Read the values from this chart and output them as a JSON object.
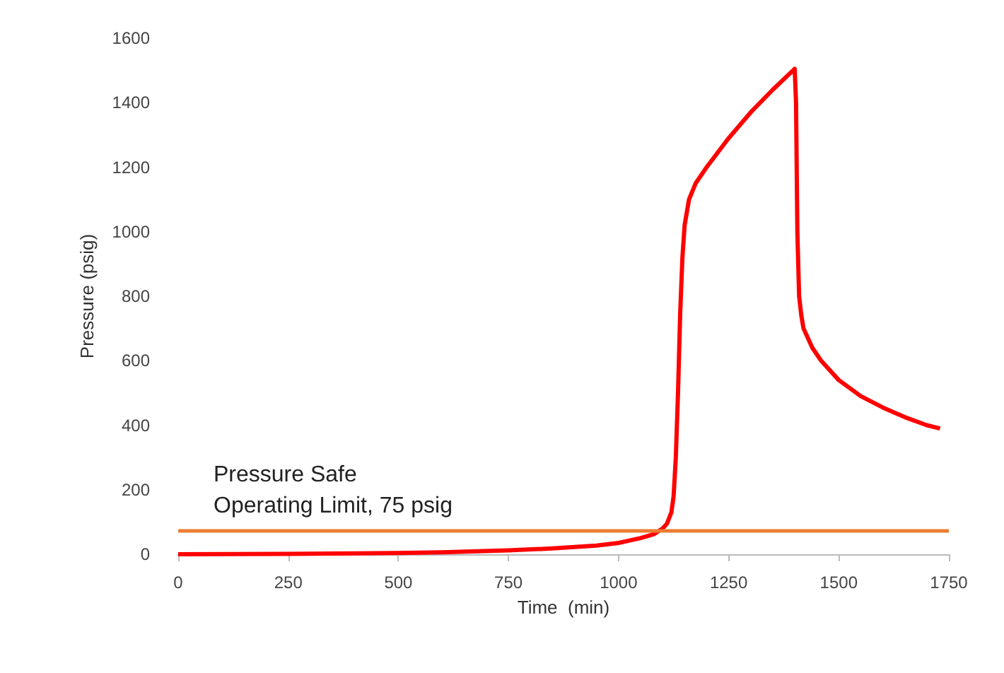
{
  "chart_data": {
    "type": "line",
    "xlabel": "Time  (min)",
    "ylabel": "Pressure (psig)",
    "xlim": [
      0,
      1750
    ],
    "xticks": [
      0,
      250,
      500,
      750,
      1000,
      1250,
      1500,
      1750
    ],
    "ylim": [
      0,
      1600
    ],
    "yticks": [
      0,
      200,
      400,
      600,
      800,
      1000,
      1200,
      1400,
      1600
    ],
    "grid": false,
    "marker": "none",
    "line_style": "solid",
    "series": [
      {
        "color": "#ff0000",
        "x": [
          0,
          250,
          500,
          600,
          750,
          850,
          950,
          1000,
          1050,
          1080,
          1100,
          1110,
          1120,
          1125,
          1130,
          1135,
          1140,
          1145,
          1150,
          1160,
          1175,
          1200,
          1250,
          1300,
          1350,
          1400,
          1403,
          1406,
          1410,
          1415,
          1420,
          1440,
          1460,
          1500,
          1550,
          1600,
          1650,
          1700,
          1730
        ],
        "values": [
          0,
          1,
          4,
          6,
          12,
          18,
          27,
          35,
          50,
          62,
          80,
          95,
          130,
          180,
          300,
          500,
          750,
          920,
          1020,
          1100,
          1150,
          1200,
          1290,
          1370,
          1440,
          1505,
          1400,
          1000,
          800,
          740,
          700,
          640,
          600,
          540,
          490,
          455,
          425,
          400,
          390
        ]
      }
    ],
    "ref_lines": [
      {
        "axis": "y",
        "value": 75,
        "label": "Pressure Safe\nOperating Limit, 75 psig",
        "color": "#ed7d31",
        "line_style": "solid"
      }
    ]
  }
}
